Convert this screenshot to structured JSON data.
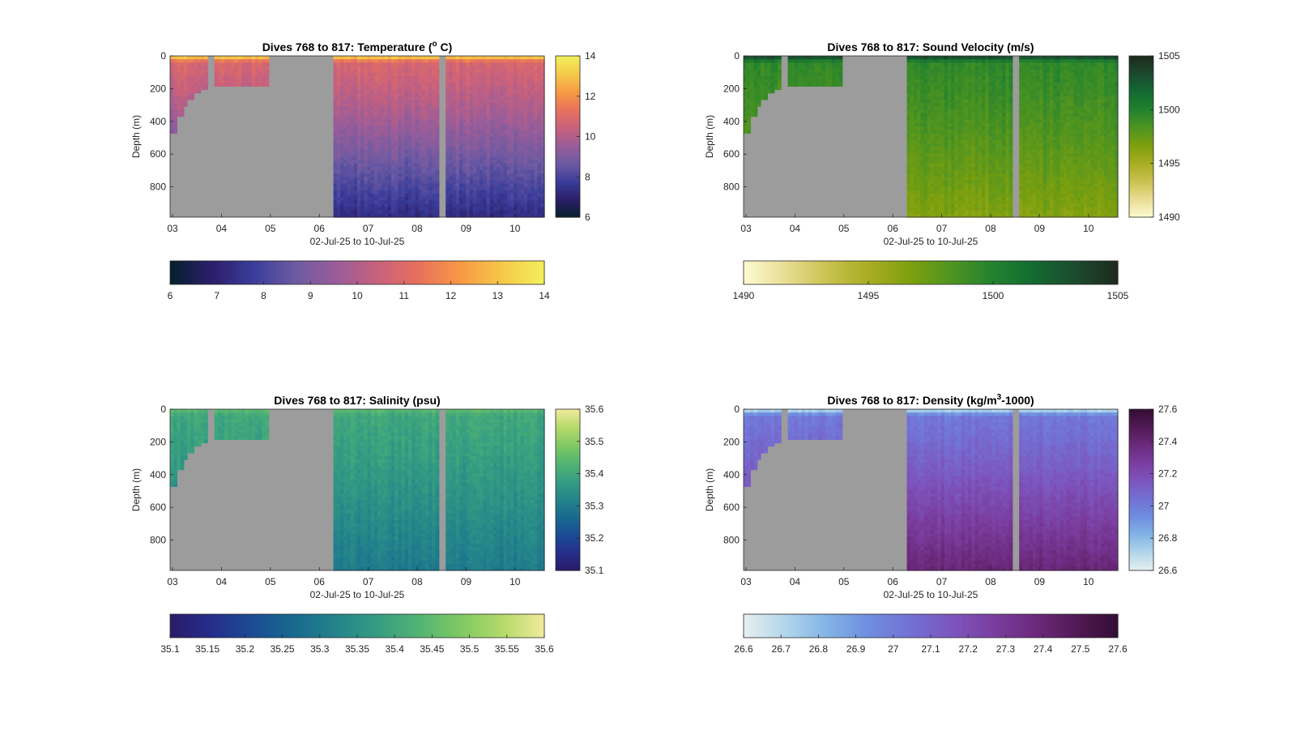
{
  "chart_data": [
    {
      "type": "heatmap",
      "title": "Dives 768 to 817: Temperature (",
      "title_sup": "o",
      "title_tail": " C)",
      "xlabel": "02-Jul-25 to 10-Jul-25",
      "ylabel": "Depth (m)",
      "x_ticks": [
        "03",
        "04",
        "05",
        "06",
        "07",
        "08",
        "09",
        "10"
      ],
      "x_range_days": [
        2.95,
        10.6
      ],
      "y_ticks": [
        0,
        200,
        400,
        600,
        800
      ],
      "y_range": [
        0,
        985
      ],
      "colorbar_ticks": [
        "6",
        "8",
        "10",
        "12",
        "14"
      ],
      "horizontal_colorbar_ticks": [
        "6",
        "7",
        "8",
        "9",
        "10",
        "11",
        "12",
        "13",
        "14"
      ],
      "value_range": [
        6,
        14
      ],
      "surface_value": 13.6,
      "subsurface_value": 10.8,
      "deep_value": 7.3,
      "colormap": [
        "#04202c",
        "#2c1e6a",
        "#3a3d9a",
        "#6c5aa2",
        "#9a5d99",
        "#c8617d",
        "#e8715c",
        "#f79a44",
        "#f5c94a",
        "#f3f05b"
      ]
    },
    {
      "type": "heatmap",
      "title": "Dives 768 to 817: Sound Velocity (m/s)",
      "xlabel": "02-Jul-25 to 10-Jul-25",
      "ylabel": "Depth (m)",
      "x_ticks": [
        "03",
        "04",
        "05",
        "06",
        "07",
        "08",
        "09",
        "10"
      ],
      "x_range_days": [
        2.95,
        10.6
      ],
      "y_ticks": [
        0,
        200,
        400,
        600,
        800
      ],
      "y_range": [
        0,
        985
      ],
      "colorbar_ticks": [
        "1490",
        "1495",
        "1500",
        "1505"
      ],
      "horizontal_colorbar_ticks": [
        "1490",
        "1495",
        "1500",
        "1505"
      ],
      "value_range": [
        1490,
        1505
      ],
      "surface_value": 1504.2,
      "subsurface_value": 1499.5,
      "deep_value": 1496.5,
      "colormap": [
        "#fdfbd3",
        "#e9dd94",
        "#cbc251",
        "#a8ad23",
        "#7ea00e",
        "#4f9420",
        "#22822f",
        "#136a32",
        "#1c4a2e",
        "#1d2a1c"
      ]
    },
    {
      "type": "heatmap",
      "title": "Dives 768 to 817: Salinity (psu)",
      "xlabel": "02-Jul-25 to 10-Jul-25",
      "ylabel": "Depth (m)",
      "x_ticks": [
        "03",
        "04",
        "05",
        "06",
        "07",
        "08",
        "09",
        "10"
      ],
      "x_range_days": [
        2.95,
        10.6
      ],
      "y_ticks": [
        0,
        200,
        400,
        600,
        800
      ],
      "y_range": [
        0,
        985
      ],
      "colorbar_ticks": [
        "35.1",
        "35.2",
        "35.3",
        "35.4",
        "35.5",
        "35.6"
      ],
      "horizontal_colorbar_ticks": [
        "35.1",
        "35.15",
        "35.2",
        "35.25",
        "35.3",
        "35.35",
        "35.4",
        "35.45",
        "35.5",
        "35.55",
        "35.6"
      ],
      "value_range": [
        35.1,
        35.6
      ],
      "surface_value": 35.45,
      "subsurface_value": 35.4,
      "deep_value": 35.3,
      "colormap": [
        "#2a1b68",
        "#262e8c",
        "#1b4c93",
        "#196a8f",
        "#24848a",
        "#359d82",
        "#53b473",
        "#80c963",
        "#b5da6a",
        "#f1ea9c"
      ]
    },
    {
      "type": "heatmap",
      "title": "Dives 768 to 817: Density (kg/m",
      "title_sup": "3",
      "title_tail": "-1000)",
      "xlabel": "02-Jul-25 to 10-Jul-25",
      "ylabel": "Depth (m)",
      "x_ticks": [
        "03",
        "04",
        "05",
        "06",
        "07",
        "08",
        "09",
        "10"
      ],
      "x_range_days": [
        2.95,
        10.6
      ],
      "y_ticks": [
        0,
        200,
        400,
        600,
        800
      ],
      "y_range": [
        0,
        985
      ],
      "colorbar_ticks": [
        "26.6",
        "26.8",
        "27",
        "27.2",
        "27.4",
        "27.6"
      ],
      "horizontal_colorbar_ticks": [
        "26.6",
        "26.7",
        "26.8",
        "26.9",
        "27",
        "27.1",
        "27.2",
        "27.3",
        "27.4",
        "27.5",
        "27.6"
      ],
      "value_range": [
        26.6,
        27.6
      ],
      "surface_value": 26.65,
      "subsurface_value": 27.02,
      "deep_value": 27.4,
      "colormap": [
        "#e6f0f0",
        "#b3d6ea",
        "#82b4e6",
        "#6f8ee0",
        "#7371d4",
        "#7c56be",
        "#7b3ea0",
        "#6c2a7c",
        "#521a55",
        "#330d35"
      ]
    }
  ],
  "colors": {
    "no_data": "#9c9c9c",
    "axis": "#262626",
    "background": "#ffffff"
  }
}
